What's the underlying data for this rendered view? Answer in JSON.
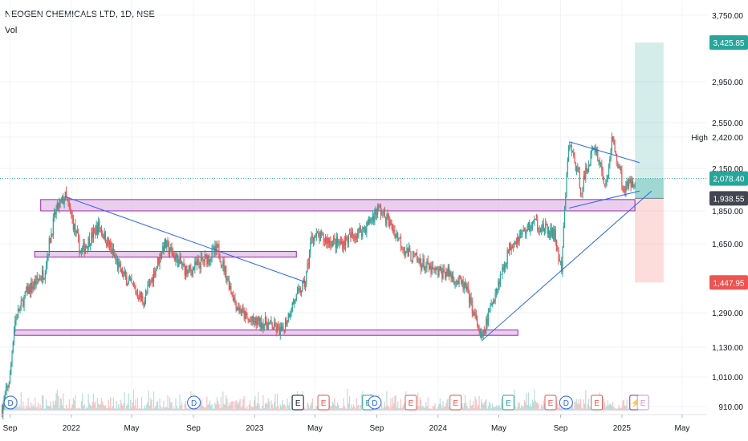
{
  "header": {
    "title": "NEOGEN CHEMICALS LTD, 1D, NSE",
    "volume_label": "Vol"
  },
  "high_label": "High",
  "colors": {
    "up": "#26a69a",
    "down": "#ef5350",
    "trend": "#2962ff",
    "zone_fill": "#e1bee7",
    "zone_stroke": "#9c27b0",
    "target": "#26a69a",
    "stop": "#ef5350",
    "last": "#26a69a",
    "current": "#434651"
  },
  "chart_data": {
    "type": "candlestick",
    "x_tick_labels": [
      "Sep",
      "2022",
      "May",
      "Sep",
      "2023",
      "May",
      "Sep",
      "2024",
      "May",
      "Sep",
      "2025",
      "May"
    ],
    "y_tick_labels": [
      "3,750.00",
      "2,950.00",
      "2,550.00",
      "2,420.00",
      "2,150.00",
      "1,850.00",
      "1,650.00",
      "1,290.00",
      "1,130.00",
      "1,010.00",
      "910.00"
    ],
    "price_tags": [
      {
        "value": "3,425.85",
        "role": "target"
      },
      {
        "value": "2,078.40",
        "role": "last"
      },
      {
        "value": "1,938.55",
        "role": "current"
      },
      {
        "value": "1,447.95",
        "role": "stop"
      }
    ],
    "anchor_points": [
      [
        "2021-08-16",
        900
      ],
      [
        "2021-09-01",
        1010
      ],
      [
        "2021-09-10",
        1250
      ],
      [
        "2021-10-05",
        1400
      ],
      [
        "2021-11-08",
        1500
      ],
      [
        "2021-12-01",
        1850
      ],
      [
        "2021-12-20",
        1950
      ],
      [
        "2022-01-20",
        1600
      ],
      [
        "2022-02-25",
        1760
      ],
      [
        "2022-04-10",
        1500
      ],
      [
        "2022-05-25",
        1350
      ],
      [
        "2022-07-05",
        1650
      ],
      [
        "2022-08-20",
        1500
      ],
      [
        "2022-09-20",
        1560
      ],
      [
        "2022-10-20",
        1620
      ],
      [
        "2022-11-25",
        1330
      ],
      [
        "2022-12-20",
        1250
      ],
      [
        "2023-01-25",
        1240
      ],
      [
        "2023-02-25",
        1200
      ],
      [
        "2023-03-20",
        1350
      ],
      [
        "2023-04-12",
        1450
      ],
      [
        "2023-04-25",
        1700
      ],
      [
        "2023-06-20",
        1650
      ],
      [
        "2023-08-10",
        1750
      ],
      [
        "2023-09-05",
        1870
      ],
      [
        "2023-09-25",
        1780
      ],
      [
        "2023-11-01",
        1600
      ],
      [
        "2023-12-25",
        1500
      ],
      [
        "2024-01-20",
        1500
      ],
      [
        "2024-02-25",
        1420
      ],
      [
        "2024-03-28",
        1160
      ],
      [
        "2024-04-22",
        1380
      ],
      [
        "2024-05-25",
        1650
      ],
      [
        "2024-07-10",
        1780
      ],
      [
        "2024-08-20",
        1700
      ],
      [
        "2024-09-03",
        1500
      ],
      [
        "2024-09-18",
        2380
      ],
      [
        "2024-10-12",
        2000
      ],
      [
        "2024-11-08",
        2350
      ],
      [
        "2024-12-01",
        2000
      ],
      [
        "2024-12-12",
        2400
      ],
      [
        "2025-01-05",
        2000
      ],
      [
        "2025-01-27",
        2078
      ]
    ],
    "support_resistance_zones": [
      {
        "from": "2021-11-01",
        "to": "2025-01-27",
        "low": 1850,
        "high": 1930
      },
      {
        "from": "2021-10-20",
        "to": "2023-03-25",
        "low": 1580,
        "high": 1610
      },
      {
        "from": "2021-09-10",
        "to": "2024-06-08",
        "low": 1185,
        "high": 1210
      }
    ],
    "trendlines": [
      {
        "from": [
          "2021-12-20",
          1950
        ],
        "to": [
          "2023-04-12",
          1450
        ]
      },
      {
        "from": [
          "2024-03-28",
          1160
        ],
        "to": [
          "2025-03-01",
          1990
        ]
      },
      {
        "from": [
          "2024-09-18",
          2380
        ],
        "to": [
          "2025-02-05",
          2200
        ]
      },
      {
        "from": [
          "2024-09-18",
          1870
        ],
        "to": [
          "2025-02-05",
          1990
        ]
      }
    ],
    "long_position": {
      "entry": 1938.55,
      "target": 3425.85,
      "stop": 1447.95,
      "start": "2025-01-27",
      "end": "2025-03-25"
    },
    "events": [
      {
        "date": "2021-09-02",
        "label": "D"
      },
      {
        "date": "2022-09-02",
        "label": "D"
      },
      {
        "date": "2023-03-28",
        "label": "E"
      },
      {
        "date": "2023-05-18",
        "label": "E"
      },
      {
        "date": "2023-08-15",
        "label": "E"
      },
      {
        "date": "2023-08-28",
        "label": "D"
      },
      {
        "date": "2023-11-08",
        "label": "E"
      },
      {
        "date": "2024-02-05",
        "label": "E"
      },
      {
        "date": "2024-05-20",
        "label": "E"
      },
      {
        "date": "2024-08-12",
        "label": "E"
      },
      {
        "date": "2024-09-12",
        "label": "D"
      },
      {
        "date": "2024-11-12",
        "label": "E"
      },
      {
        "date": "2025-01-28",
        "label": "⚡"
      },
      {
        "date": "2025-02-12",
        "label": "E"
      }
    ]
  }
}
